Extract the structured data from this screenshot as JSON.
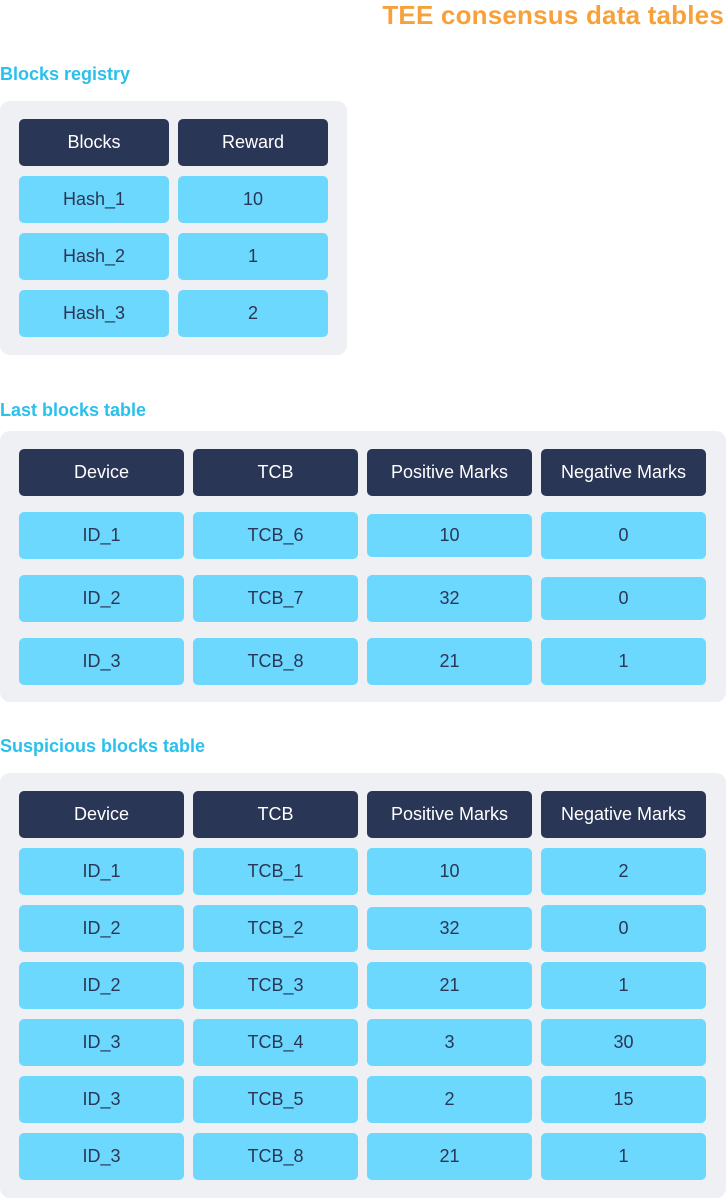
{
  "title": "TEE consensus data tables",
  "colors": {
    "title": "#f7a13a",
    "section_heading": "#2bc0ec",
    "panel": "#eff0f3",
    "header_cell": "#2a3655",
    "value_cell": "#6dd8fe",
    "value_text": "#2a3655"
  },
  "blocks_registry": {
    "heading": "Blocks registry",
    "columns": [
      "Blocks",
      "Reward"
    ],
    "rows": [
      [
        "Hash_1",
        "10"
      ],
      [
        "Hash_2",
        "1"
      ],
      [
        "Hash_3",
        "2"
      ]
    ]
  },
  "last_blocks": {
    "heading": "Last blocks table",
    "columns": [
      "Device",
      "TCB",
      "Positive Marks",
      "Negative Marks"
    ],
    "rows": [
      [
        "ID_1",
        "TCB_6",
        "10",
        "0"
      ],
      [
        "ID_2",
        "TCB_7",
        "32",
        "0"
      ],
      [
        "ID_3",
        "TCB_8",
        "21",
        "1"
      ]
    ]
  },
  "suspicious_blocks": {
    "heading": "Suspicious blocks table",
    "columns": [
      "Device",
      "TCB",
      "Positive Marks",
      "Negative Marks"
    ],
    "rows": [
      [
        "ID_1",
        "TCB_1",
        "10",
        "2"
      ],
      [
        "ID_2",
        "TCB_2",
        "32",
        "0"
      ],
      [
        "ID_2",
        "TCB_3",
        "21",
        "1"
      ],
      [
        "ID_3",
        "TCB_4",
        "3",
        "30"
      ],
      [
        "ID_3",
        "TCB_5",
        "2",
        "15"
      ],
      [
        "ID_3",
        "TCB_8",
        "21",
        "1"
      ]
    ]
  }
}
